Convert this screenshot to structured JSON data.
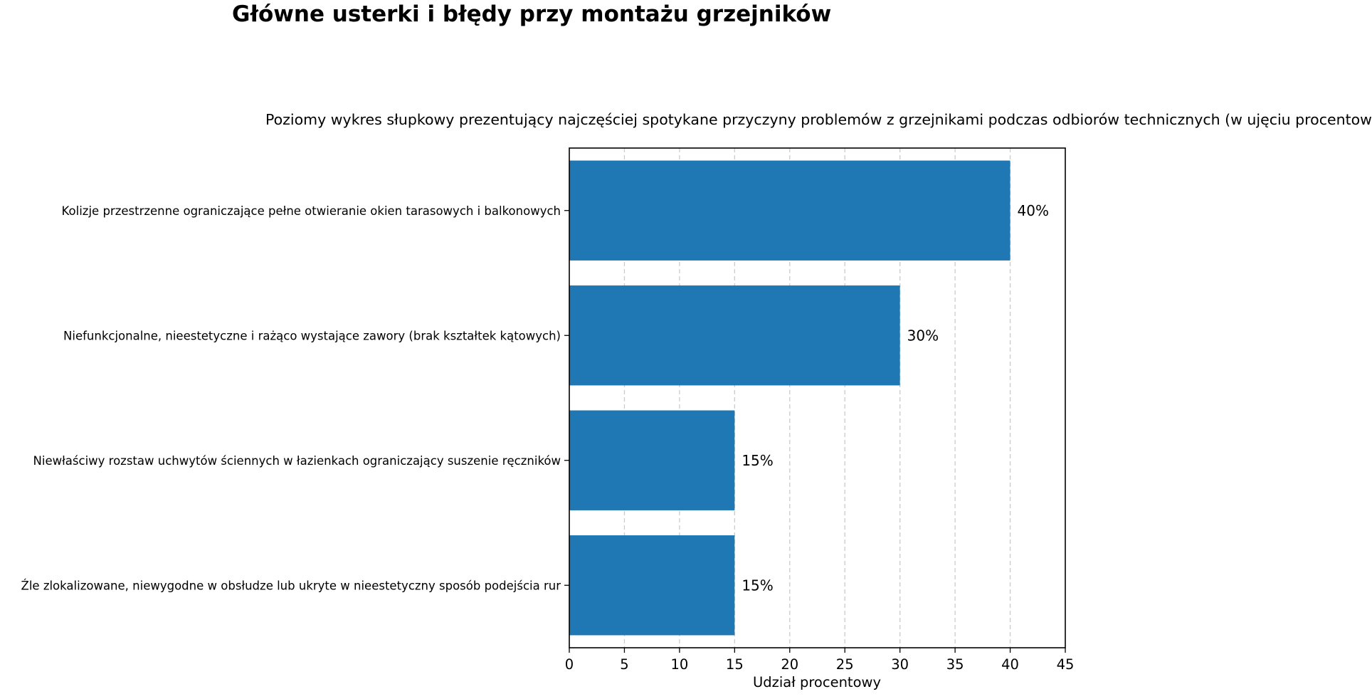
{
  "chart_data": {
    "type": "bar",
    "orientation": "horizontal",
    "title": "Główne usterki i błędy przy montażu grzejników",
    "subtitle": "Poziomy wykres słupkowy prezentujący najczęściej spotykane przyczyny problemów z grzejnikami podczas odbiorów technicznych (w ujęciu procentowym).",
    "xlabel": "Udział procentowy",
    "ylabel": "",
    "categories": [
      "Kolizje przestrzenne ograniczające pełne otwieranie okien tarasowych i balkonowych",
      "Niefunkcjonalne, nieestetyczne i rażąco wystające zawory (brak kształtek kątowych)",
      "Niewłaściwy rozstaw uchwytów ściennych w łazienkach ograniczający suszenie ręczników",
      "Źle zlokalizowane, niewygodne w obsłudze lub ukryte w nieestetyczny sposób podejścia rur"
    ],
    "values": [
      40,
      30,
      15,
      15
    ],
    "value_labels": [
      "40%",
      "30%",
      "15%",
      "15%"
    ],
    "xlim": [
      0,
      45
    ],
    "xticks": [
      "0",
      "5",
      "10",
      "15",
      "20",
      "25",
      "30",
      "35",
      "40",
      "45"
    ],
    "grid": "x-dashed",
    "legend": "none",
    "bar_color": "#1f77b4"
  }
}
